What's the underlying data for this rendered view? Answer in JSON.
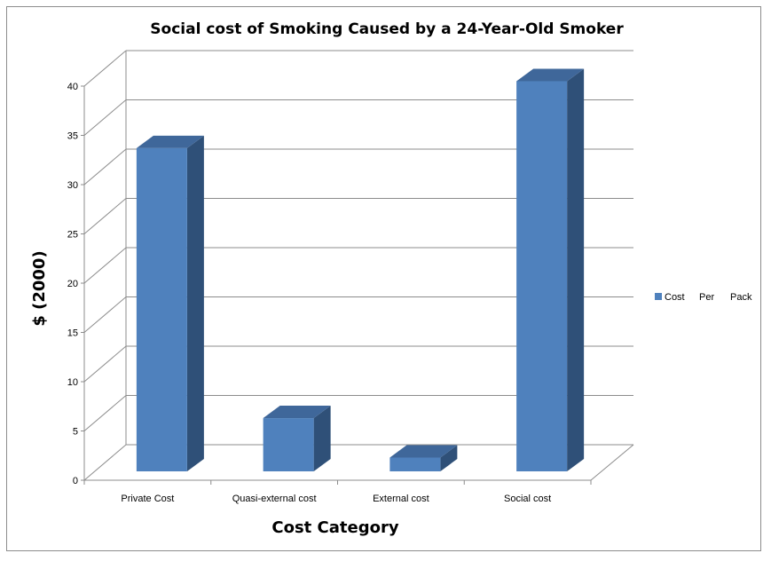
{
  "chart_data": {
    "type": "bar",
    "title": "Social cost of Smoking Caused by a 24-Year-Old Smoker",
    "xlabel": "Cost Category",
    "ylabel": "$ (2000)",
    "categories": [
      "Private Cost",
      "Quasi-external cost",
      "External cost",
      "Social cost"
    ],
    "series": [
      {
        "name": "Cost Per Pack",
        "values": [
          32.8,
          5.4,
          1.4,
          39.6
        ]
      }
    ],
    "legend_words": [
      "Cost",
      "Per",
      "Pack"
    ],
    "ylim": [
      0,
      40
    ],
    "yticks": [
      0,
      5,
      10,
      15,
      20,
      25,
      30,
      35,
      40
    ],
    "grid": true,
    "legend_position": "right",
    "colors": {
      "bar_front": "#4f81bd",
      "bar_side": "#2f5078",
      "bar_top": "#3f679a",
      "grid": "#8c8c8c"
    }
  }
}
